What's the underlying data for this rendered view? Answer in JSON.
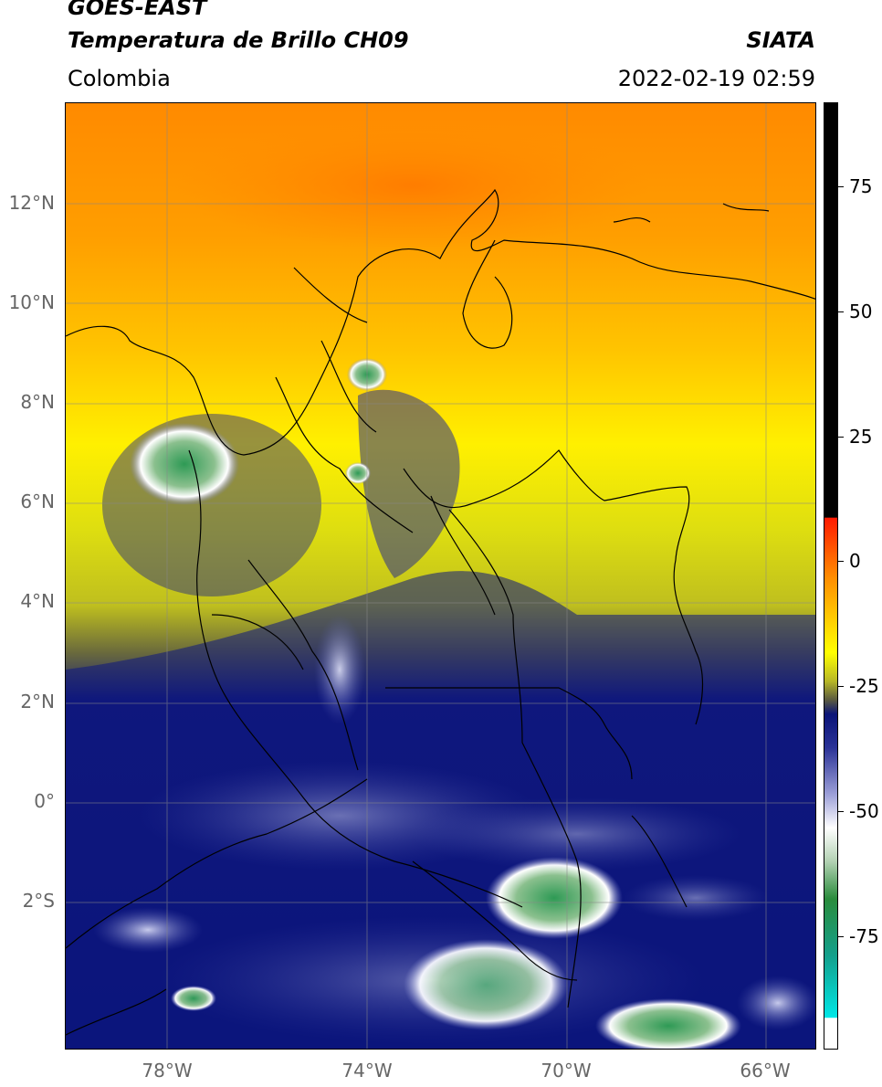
{
  "header": {
    "title_line1": "GOES-EAST",
    "title_line2": "Temperatura de Brillo CH09",
    "brand": "SIATA",
    "region": "Colombia",
    "datetime": "2022-02-19 02:59"
  },
  "map": {
    "lat_labels": [
      "12°N",
      "10°N",
      "8°N",
      "6°N",
      "4°N",
      "2°N",
      "0°",
      "2°S"
    ],
    "lon_labels": [
      "78°W",
      "74°W",
      "70°W",
      "66°W"
    ],
    "extent": {
      "lon_min": -80,
      "lon_max": -65,
      "lat_min": -5,
      "lat_max": 14
    },
    "gridlines": true
  },
  "colorbar": {
    "tick_labels": [
      "75",
      "50",
      "25",
      "0",
      "-25",
      "-50",
      "-75"
    ],
    "colors": {
      "black": "#000000",
      "red": "#ff1a00",
      "orange": "#ff8c00",
      "yellow": "#ffff00",
      "olive": "#8c8c28",
      "navy": "#0a1478",
      "white": "#ffffff",
      "green": "#2a8c3c",
      "cyan": "#00e6e6"
    }
  }
}
